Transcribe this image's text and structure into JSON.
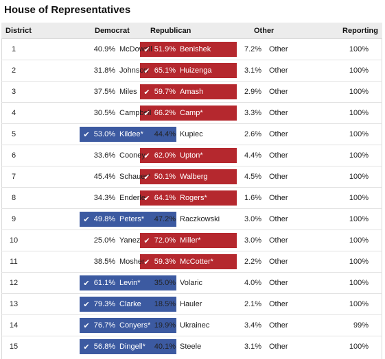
{
  "title": "House of Representatives",
  "headers": {
    "district": "District",
    "democrat": "Democrat",
    "republican": "Republican",
    "other": "Other",
    "reporting": "Reporting"
  },
  "colors": {
    "democrat_win": "#3c5aa1",
    "republican_win": "#b5282e"
  },
  "winner_icon": "check-icon",
  "check_glyph": "✔",
  "rows": [
    {
      "district": "1",
      "dem_pct": "40.9%",
      "dem_name": "McDowell",
      "rep_pct": "51.9%",
      "rep_name": "Benishek",
      "oth_pct": "7.2%",
      "oth_name": "Other",
      "reporting": "100%",
      "winner": "rep"
    },
    {
      "district": "2",
      "dem_pct": "31.8%",
      "dem_name": "Johnson",
      "rep_pct": "65.1%",
      "rep_name": "Huizenga",
      "oth_pct": "3.1%",
      "oth_name": "Other",
      "reporting": "100%",
      "winner": "rep"
    },
    {
      "district": "3",
      "dem_pct": "37.5%",
      "dem_name": "Miles",
      "rep_pct": "59.7%",
      "rep_name": "Amash",
      "oth_pct": "2.9%",
      "oth_name": "Other",
      "reporting": "100%",
      "winner": "rep"
    },
    {
      "district": "4",
      "dem_pct": "30.5%",
      "dem_name": "Campbell",
      "rep_pct": "66.2%",
      "rep_name": "Camp*",
      "oth_pct": "3.3%",
      "oth_name": "Other",
      "reporting": "100%",
      "winner": "rep"
    },
    {
      "district": "5",
      "dem_pct": "53.0%",
      "dem_name": "Kildee*",
      "rep_pct": "44.4%",
      "rep_name": "Kupiec",
      "oth_pct": "2.6%",
      "oth_name": "Other",
      "reporting": "100%",
      "winner": "dem"
    },
    {
      "district": "6",
      "dem_pct": "33.6%",
      "dem_name": "Cooney",
      "rep_pct": "62.0%",
      "rep_name": "Upton*",
      "oth_pct": "4.4%",
      "oth_name": "Other",
      "reporting": "100%",
      "winner": "rep"
    },
    {
      "district": "7",
      "dem_pct": "45.4%",
      "dem_name": "Schauer*",
      "rep_pct": "50.1%",
      "rep_name": "Walberg",
      "oth_pct": "4.5%",
      "oth_name": "Other",
      "reporting": "100%",
      "winner": "rep"
    },
    {
      "district": "8",
      "dem_pct": "34.3%",
      "dem_name": "Enderle",
      "rep_pct": "64.1%",
      "rep_name": "Rogers*",
      "oth_pct": "1.6%",
      "oth_name": "Other",
      "reporting": "100%",
      "winner": "rep"
    },
    {
      "district": "9",
      "dem_pct": "49.8%",
      "dem_name": "Peters*",
      "rep_pct": "47.2%",
      "rep_name": "Raczkowski",
      "oth_pct": "3.0%",
      "oth_name": "Other",
      "reporting": "100%",
      "winner": "dem"
    },
    {
      "district": "10",
      "dem_pct": "25.0%",
      "dem_name": "Yanez",
      "rep_pct": "72.0%",
      "rep_name": "Miller*",
      "oth_pct": "3.0%",
      "oth_name": "Other",
      "reporting": "100%",
      "winner": "rep"
    },
    {
      "district": "11",
      "dem_pct": "38.5%",
      "dem_name": "Mosher",
      "rep_pct": "59.3%",
      "rep_name": "McCotter*",
      "oth_pct": "2.2%",
      "oth_name": "Other",
      "reporting": "100%",
      "winner": "rep"
    },
    {
      "district": "12",
      "dem_pct": "61.1%",
      "dem_name": "Levin*",
      "rep_pct": "35.0%",
      "rep_name": "Volaric",
      "oth_pct": "4.0%",
      "oth_name": "Other",
      "reporting": "100%",
      "winner": "dem"
    },
    {
      "district": "13",
      "dem_pct": "79.3%",
      "dem_name": "Clarke",
      "rep_pct": "18.5%",
      "rep_name": "Hauler",
      "oth_pct": "2.1%",
      "oth_name": "Other",
      "reporting": "100%",
      "winner": "dem"
    },
    {
      "district": "14",
      "dem_pct": "76.7%",
      "dem_name": "Conyers*",
      "rep_pct": "19.9%",
      "rep_name": "Ukrainec",
      "oth_pct": "3.4%",
      "oth_name": "Other",
      "reporting": "99%",
      "winner": "dem"
    },
    {
      "district": "15",
      "dem_pct": "56.8%",
      "dem_name": "Dingell*",
      "rep_pct": "40.1%",
      "rep_name": "Steele",
      "oth_pct": "3.1%",
      "oth_name": "Other",
      "reporting": "100%",
      "winner": "dem"
    }
  ]
}
